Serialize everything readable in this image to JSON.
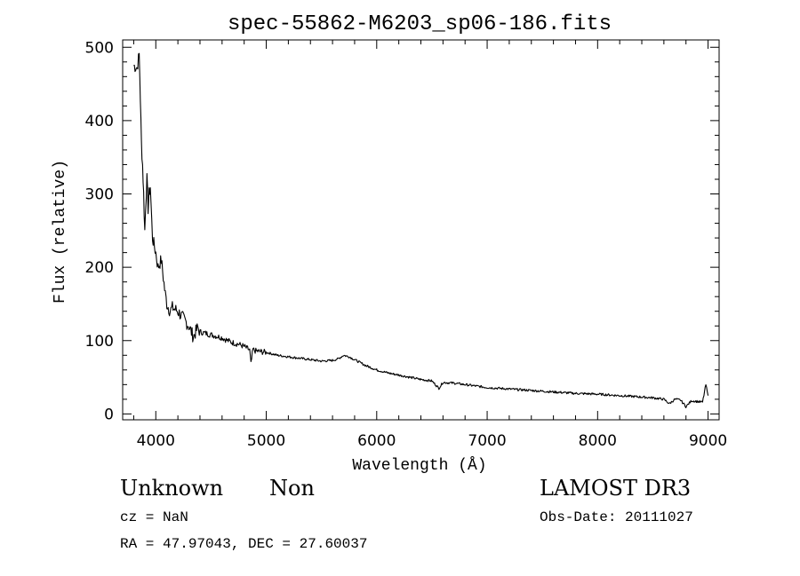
{
  "chart_data": {
    "type": "line",
    "title": "spec-55862-M6203_sp06-186.fits",
    "xlabel": "Wavelength (Å)",
    "ylabel": "Flux (relative)",
    "xlim": [
      3700,
      9100
    ],
    "ylim": [
      -8,
      510
    ],
    "x_ticks": [
      4000,
      5000,
      6000,
      7000,
      8000,
      9000
    ],
    "x_tick_labels": [
      "4000",
      "5000",
      "6000",
      "7000",
      "8000",
      "9000"
    ],
    "y_ticks": [
      0,
      100,
      200,
      300,
      400,
      500
    ],
    "y_tick_labels": [
      "0",
      "100",
      "200",
      "300",
      "400",
      "500"
    ],
    "grid": false,
    "series": [
      {
        "name": "flux",
        "color": "#000000",
        "x": [
          3800,
          3830,
          3850,
          3860,
          3870,
          3880,
          3890,
          3900,
          3910,
          3920,
          3930,
          3940,
          3950,
          3970,
          4000,
          4020,
          4050,
          4080,
          4100,
          4130,
          4150,
          4200,
          4250,
          4300,
          4340,
          4380,
          4400,
          4450,
          4500,
          4550,
          4600,
          4650,
          4700,
          4750,
          4800,
          4850,
          4861,
          4880,
          4900,
          5000,
          5100,
          5200,
          5300,
          5400,
          5500,
          5600,
          5650,
          5700,
          5750,
          5800,
          5850,
          5900,
          6000,
          6100,
          6200,
          6300,
          6400,
          6500,
          6563,
          6600,
          6700,
          6800,
          6900,
          7000,
          7200,
          7400,
          7600,
          7800,
          8000,
          8200,
          8400,
          8500,
          8600,
          8650,
          8700,
          8750,
          8800,
          8850,
          8900,
          8950,
          8980,
          9000
        ],
        "y": [
          475,
          472,
          490,
          430,
          370,
          340,
          300,
          250,
          290,
          320,
          280,
          300,
          310,
          240,
          220,
          200,
          210,
          170,
          150,
          140,
          145,
          140,
          130,
          120,
          105,
          118,
          112,
          110,
          108,
          106,
          104,
          100,
          97,
          95,
          92,
          87,
          68,
          88,
          86,
          84,
          80,
          78,
          76,
          74,
          72,
          73,
          75,
          80,
          78,
          74,
          70,
          66,
          60,
          56,
          53,
          50,
          47,
          45,
          35,
          43,
          42,
          40,
          38,
          36,
          34,
          32,
          30,
          28,
          27,
          25,
          23,
          22,
          20,
          14,
          20,
          19,
          10,
          18,
          17,
          16,
          40,
          25
        ]
      }
    ]
  },
  "info": {
    "object_class": "Unknown",
    "object_subclass": "Non",
    "survey": "LAMOST DR3",
    "cz": "cz = NaN",
    "obs_date": "Obs-Date: 20111027",
    "ra_dec": "RA =  47.97043, DEC =  27.60037"
  }
}
